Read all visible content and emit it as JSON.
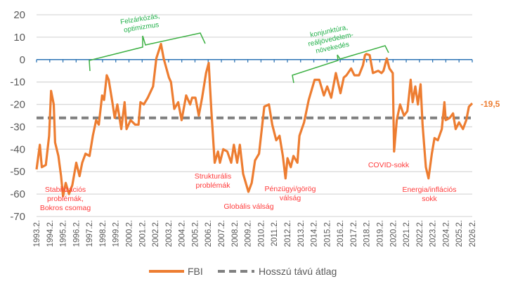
{
  "chart_data": {
    "type": "line",
    "title": "",
    "xlabel": "",
    "ylabel": "",
    "ylim": [
      -70,
      20
    ],
    "yticks": [
      20,
      10,
      0,
      -10,
      -20,
      -30,
      -40,
      -50,
      -60,
      -70
    ],
    "xlim": [
      1993.1,
      2026.0
    ],
    "xtick_labels": [
      "1993.2.",
      "1994.2.",
      "1995.2.",
      "1996.2.",
      "1997.2.",
      "1998.2.",
      "1999.2.",
      "2000.2.",
      "2001.2.",
      "2002.2.",
      "2003.2.",
      "2004.2.",
      "2005.2.",
      "2006.2.",
      "2007.2.",
      "2008.2.",
      "2009.2.",
      "2010.2.",
      "2011.2.",
      "2012.2.",
      "2013.2.",
      "2014.2.",
      "2015.2.",
      "2016.2.",
      "2017.2.",
      "2018.2.",
      "2019.2.",
      "2020.2.",
      "2021.2.",
      "2022.2.",
      "2023.2.",
      "2024.2.",
      "2025.2.",
      "2026.2."
    ],
    "grid": true,
    "legend_placement": "bottom",
    "colors": {
      "fbi": "#ed7d31",
      "average": "#808080",
      "zero_axis": "#2e75b6",
      "grid": "#d9d9d9",
      "annotation_red": "#ff3b3b",
      "annotation_green": "#22b04a"
    },
    "series": [
      {
        "name": "FBI",
        "points": [
          [
            1993.1,
            -49
          ],
          [
            1993.35,
            -38
          ],
          [
            1993.5,
            -48
          ],
          [
            1993.8,
            -47
          ],
          [
            1994.05,
            -34
          ],
          [
            1994.2,
            -14
          ],
          [
            1994.4,
            -20
          ],
          [
            1994.5,
            -37
          ],
          [
            1994.75,
            -43
          ],
          [
            1994.95,
            -52
          ],
          [
            1995.1,
            -61
          ],
          [
            1995.3,
            -55
          ],
          [
            1995.55,
            -60
          ],
          [
            1995.8,
            -56
          ],
          [
            1996.1,
            -46
          ],
          [
            1996.35,
            -52
          ],
          [
            1996.55,
            -46
          ],
          [
            1996.8,
            -42
          ],
          [
            1997.1,
            -43
          ],
          [
            1997.35,
            -34
          ],
          [
            1997.6,
            -27
          ],
          [
            1997.8,
            -29
          ],
          [
            1998.05,
            -16
          ],
          [
            1998.2,
            -18
          ],
          [
            1998.4,
            -7
          ],
          [
            1998.55,
            -9
          ],
          [
            1998.85,
            -20
          ],
          [
            1999.0,
            -26
          ],
          [
            1999.2,
            -20
          ],
          [
            1999.5,
            -31
          ],
          [
            1999.75,
            -19
          ],
          [
            1999.9,
            -31
          ],
          [
            2000.2,
            -27
          ],
          [
            2000.55,
            -29
          ],
          [
            2000.8,
            -29
          ],
          [
            2000.95,
            -19
          ],
          [
            2001.2,
            -20
          ],
          [
            2001.5,
            -17
          ],
          [
            2001.9,
            -12
          ],
          [
            2002.15,
            0.6
          ],
          [
            2002.5,
            7
          ],
          [
            2002.7,
            0.5
          ],
          [
            2003.1,
            -8
          ],
          [
            2003.25,
            -10
          ],
          [
            2003.5,
            -22
          ],
          [
            2003.8,
            -19
          ],
          [
            2004.05,
            -27
          ],
          [
            2004.4,
            -16
          ],
          [
            2004.7,
            -20
          ],
          [
            2004.85,
            -17
          ],
          [
            2005.1,
            -17
          ],
          [
            2005.35,
            -25
          ],
          [
            2005.6,
            -17
          ],
          [
            2005.9,
            -6
          ],
          [
            2006.1,
            -1.5
          ],
          [
            2006.3,
            -23
          ],
          [
            2006.55,
            -46
          ],
          [
            2006.8,
            -41
          ],
          [
            2006.95,
            -46
          ],
          [
            2007.2,
            -40
          ],
          [
            2007.5,
            -41
          ],
          [
            2007.8,
            -46
          ],
          [
            2008.0,
            -38
          ],
          [
            2008.25,
            -46
          ],
          [
            2008.45,
            -38
          ],
          [
            2008.7,
            -51
          ],
          [
            2009.1,
            -59
          ],
          [
            2009.35,
            -55
          ],
          [
            2009.6,
            -45
          ],
          [
            2009.9,
            -42
          ],
          [
            2010.3,
            -21
          ],
          [
            2010.65,
            -20
          ],
          [
            2010.9,
            -29
          ],
          [
            2011.2,
            -36
          ],
          [
            2011.45,
            -34
          ],
          [
            2011.7,
            -43
          ],
          [
            2011.9,
            -53
          ],
          [
            2012.05,
            -44
          ],
          [
            2012.3,
            -48
          ],
          [
            2012.5,
            -43
          ],
          [
            2012.8,
            -46
          ],
          [
            2012.95,
            -34
          ],
          [
            2013.3,
            -28
          ],
          [
            2013.65,
            -18
          ],
          [
            2013.9,
            -13
          ],
          [
            2014.1,
            -9
          ],
          [
            2014.45,
            -9
          ],
          [
            2014.8,
            -16
          ],
          [
            2015.05,
            -12
          ],
          [
            2015.35,
            -17
          ],
          [
            2015.7,
            -6
          ],
          [
            2016.05,
            -15
          ],
          [
            2016.3,
            -8
          ],
          [
            2016.5,
            -7
          ],
          [
            2016.85,
            -4
          ],
          [
            2017.1,
            -7
          ],
          [
            2017.45,
            -7
          ],
          [
            2017.75,
            -2.5
          ],
          [
            2017.9,
            2
          ],
          [
            2018.0,
            2.5
          ],
          [
            2018.25,
            2
          ],
          [
            2018.5,
            -6
          ],
          [
            2018.9,
            -5
          ],
          [
            2019.15,
            -6
          ],
          [
            2019.3,
            -5
          ],
          [
            2019.55,
            0.5
          ],
          [
            2019.75,
            -4
          ],
          [
            2020.0,
            -6
          ],
          [
            2020.1,
            -41
          ],
          [
            2020.3,
            -27
          ],
          [
            2020.55,
            -20
          ],
          [
            2020.85,
            -25
          ],
          [
            2021.1,
            -23
          ],
          [
            2021.35,
            -9
          ],
          [
            2021.5,
            -19
          ],
          [
            2021.7,
            -12
          ],
          [
            2021.9,
            -20
          ],
          [
            2022.1,
            -11
          ],
          [
            2022.25,
            -29
          ],
          [
            2022.5,
            -48
          ],
          [
            2022.7,
            -53
          ],
          [
            2022.95,
            -42
          ],
          [
            2023.15,
            -35
          ],
          [
            2023.4,
            -36
          ],
          [
            2023.7,
            -31
          ],
          [
            2023.9,
            -19
          ],
          [
            2024.0,
            -27
          ],
          [
            2024.3,
            -26
          ],
          [
            2024.55,
            -24
          ],
          [
            2024.75,
            -31
          ],
          [
            2025.0,
            -28
          ],
          [
            2025.3,
            -31
          ],
          [
            2025.55,
            -27
          ],
          [
            2025.75,
            -21
          ],
          [
            2026.0,
            -19.5
          ]
        ]
      },
      {
        "name": "Hosszú távú átlag",
        "constant": -26
      }
    ],
    "end_label": "-19,5",
    "annotations_red": [
      {
        "lines": [
          "Stabilizációs",
          "problémák,",
          "Bokros csomag"
        ]
      },
      {
        "lines": [
          "Strukturális",
          "problémák"
        ]
      },
      {
        "lines": [
          "Globális válság"
        ]
      },
      {
        "lines": [
          "Pénzügyi/görög",
          "válság"
        ]
      },
      {
        "lines": [
          "COVID-sokk"
        ]
      },
      {
        "lines": [
          "Energia/inflációs",
          "sokk"
        ]
      }
    ],
    "annotations_green": [
      {
        "lines": [
          "Felzárkózás,",
          "optimizmus"
        ]
      },
      {
        "lines": [
          "konjunktúra,",
          "reáljövedelem-",
          "növekedés"
        ]
      }
    ],
    "legend": [
      "FBI",
      "Hosszú távú átlag"
    ]
  }
}
